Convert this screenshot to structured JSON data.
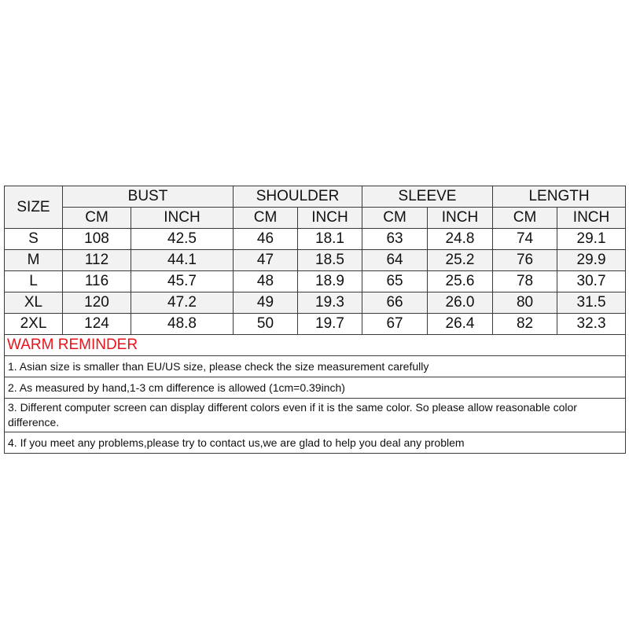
{
  "headers": {
    "size": "SIZE",
    "groups": [
      "BUST",
      "SHOULDER",
      "SLEEVE",
      "LENGTH"
    ],
    "units": [
      "CM",
      "INCH",
      "CM",
      "INCH",
      "CM",
      "INCH",
      "CM",
      "INCH"
    ]
  },
  "rows": [
    [
      "S",
      "108",
      "42.5",
      "46",
      "18.1",
      "63",
      "24.8",
      "74",
      "29.1"
    ],
    [
      "M",
      "112",
      "44.1",
      "47",
      "18.5",
      "64",
      "25.2",
      "76",
      "29.9"
    ],
    [
      "L",
      "116",
      "45.7",
      "48",
      "18.9",
      "65",
      "25.6",
      "78",
      "30.7"
    ],
    [
      "XL",
      "120",
      "47.2",
      "49",
      "19.3",
      "66",
      "26.0",
      "80",
      "31.5"
    ],
    [
      "2XL",
      "124",
      "48.8",
      "50",
      "19.7",
      "67",
      "26.4",
      "82",
      "32.3"
    ]
  ],
  "reminder": {
    "title": "WARM REMINDER",
    "title_color": "#e8141b",
    "notes": [
      "1. Asian size is smaller than EU/US size, please check the size measurement carefully",
      "2. As measured by hand,1-3 cm difference is allowed (1cm=0.39inch)",
      "3. Different computer screen can display different colors even if it is the same color. So please allow reasonable color difference.",
      "4. If you meet any problems,please try to contact us,we are glad to help you deal any problem"
    ]
  }
}
